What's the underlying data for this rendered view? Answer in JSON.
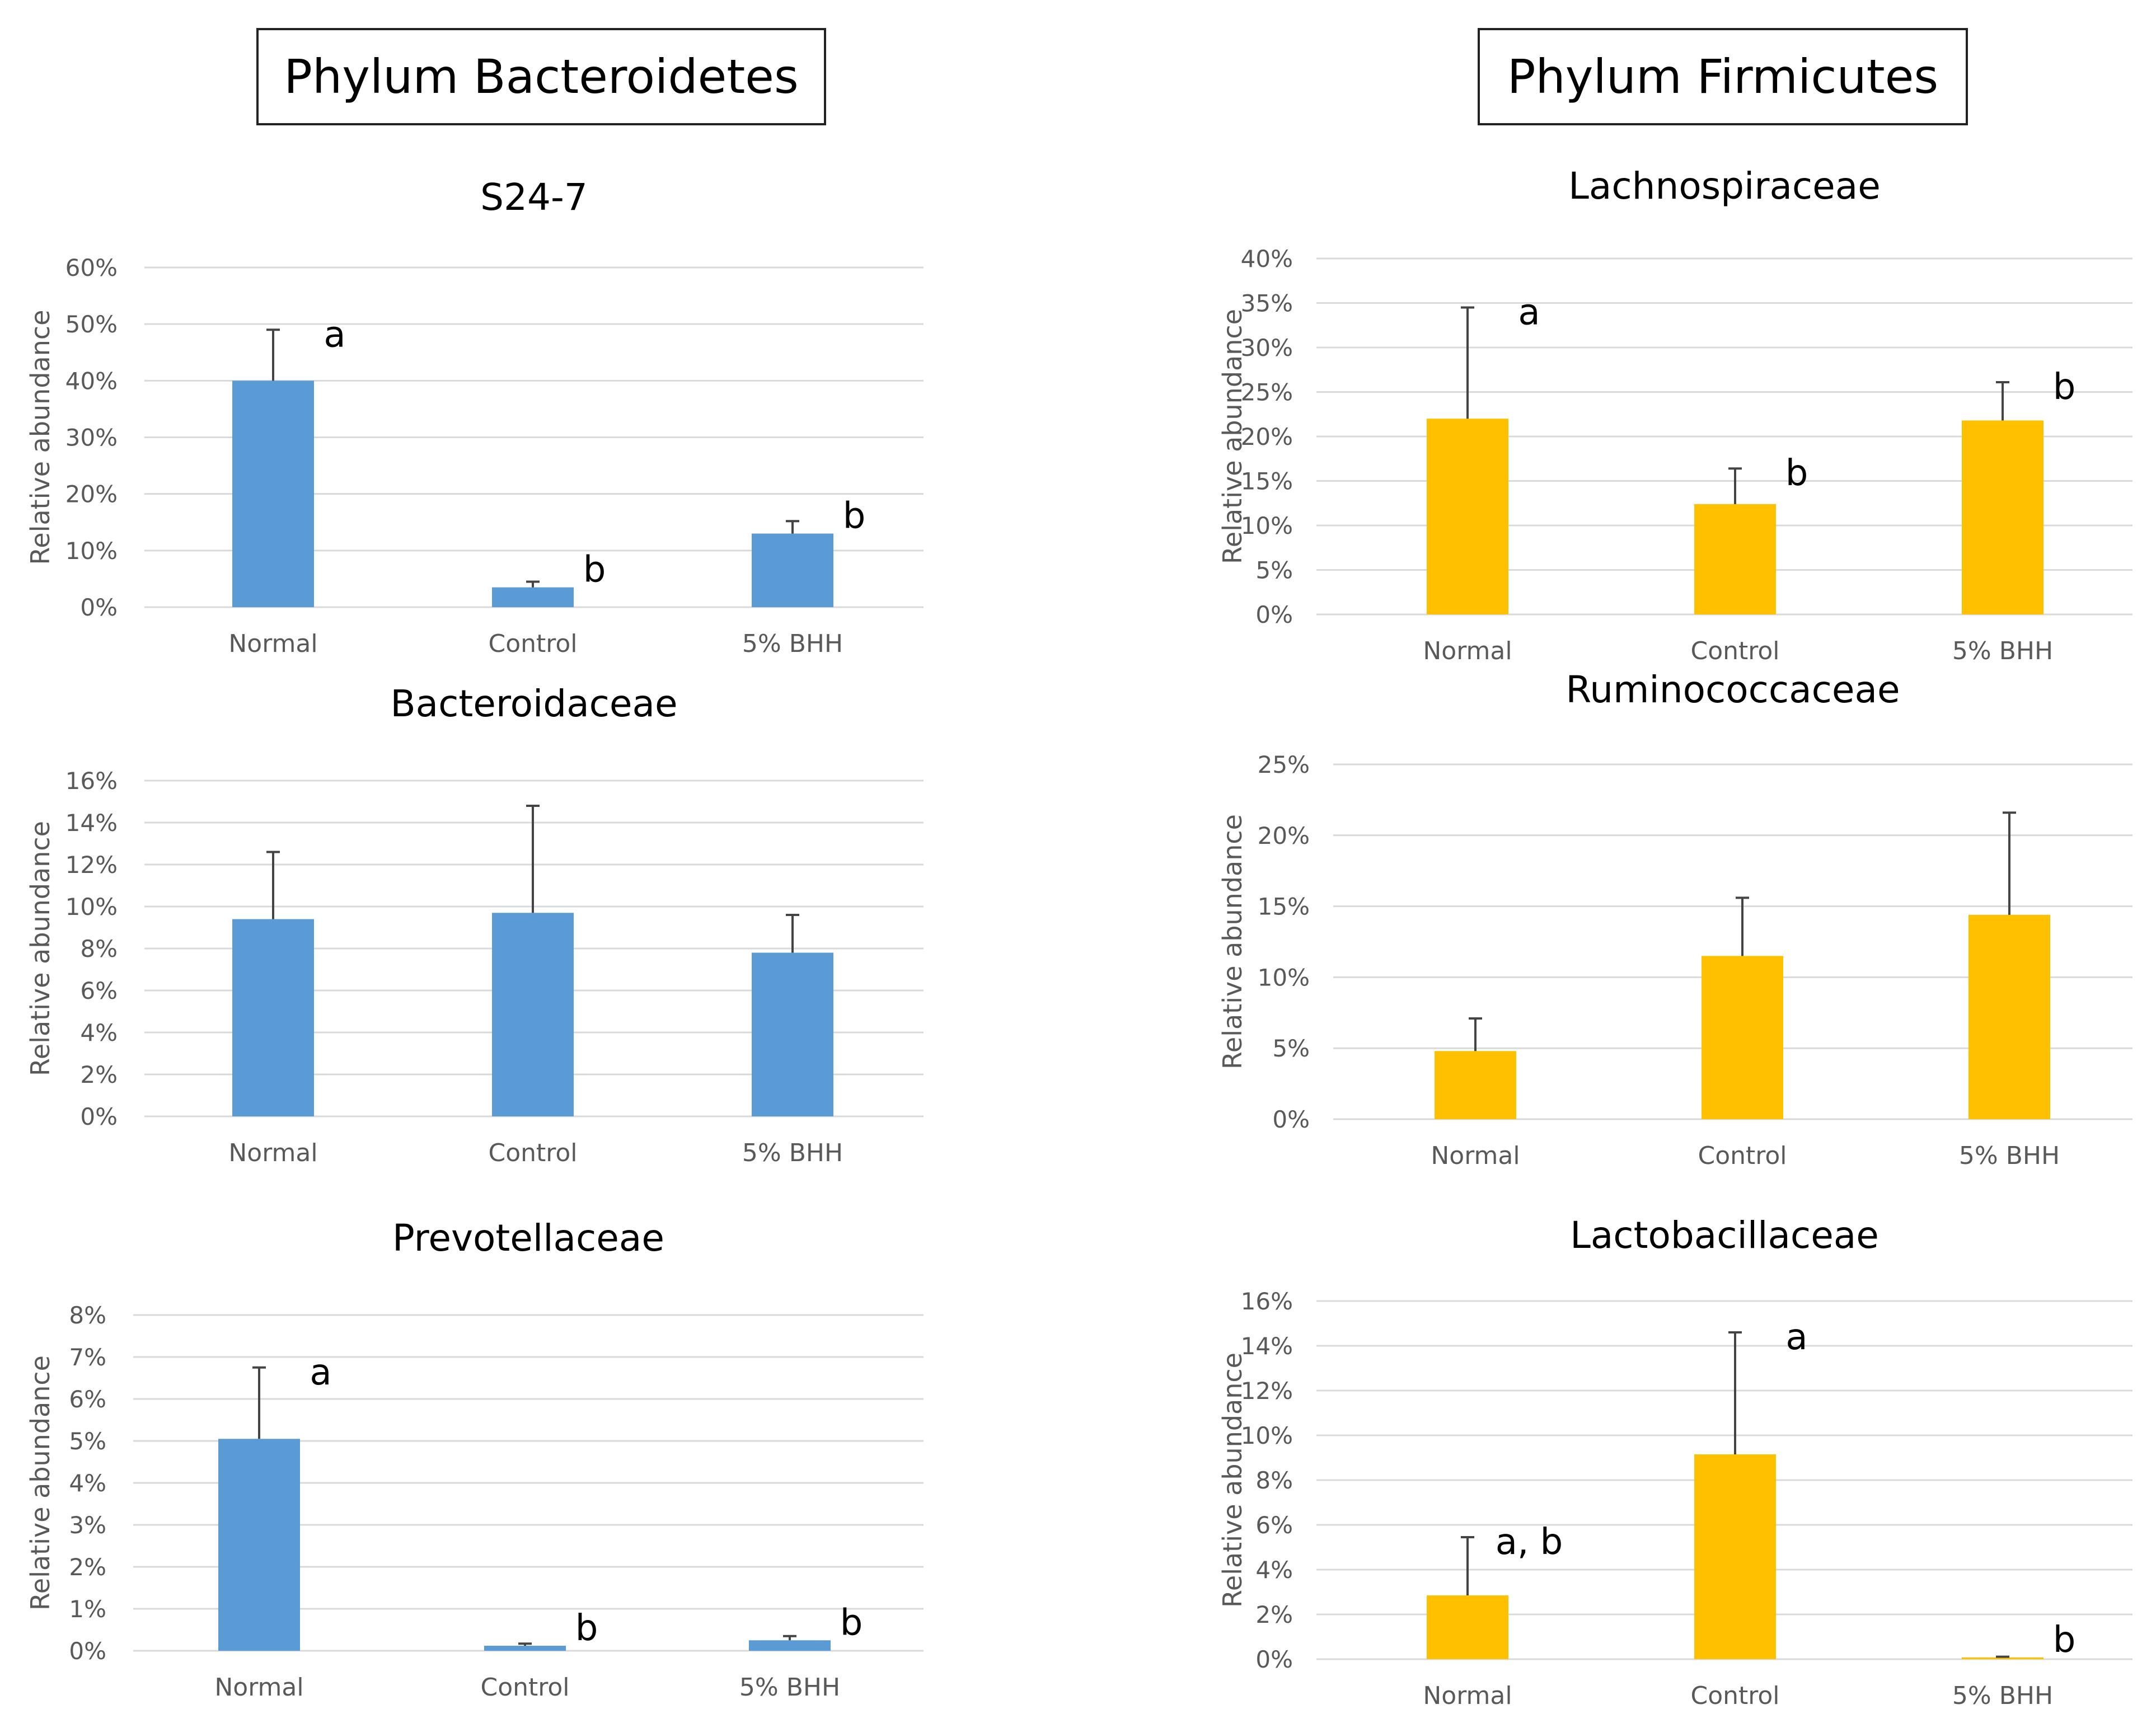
{
  "panels": {
    "left_title": "Phylum Bacteroidetes",
    "right_title": "Phylum Firmicutes"
  },
  "colors": {
    "bacteroidetes": "#5b9bd5",
    "firmicutes": "#ffc000",
    "grid": "#d9d9d9",
    "axis_text": "#595959"
  },
  "chart_data": [
    {
      "id": "s24-7",
      "type": "bar",
      "title": "S24-7",
      "ylabel": "Relative abundance",
      "xlabel": "",
      "categories": [
        "Normal",
        "Control",
        "5% BHH"
      ],
      "values": [
        40,
        3.5,
        13
      ],
      "errors": [
        9,
        1,
        2.2
      ],
      "letters": [
        "a",
        "b",
        "b"
      ],
      "ylim": [
        0,
        60
      ],
      "ticks": [
        "0%",
        "10%",
        "20%",
        "30%",
        "40%",
        "50%",
        "60%"
      ],
      "grid": true,
      "color": "#5b9bd5"
    },
    {
      "id": "bacteroidaceae",
      "type": "bar",
      "title": "Bacteroidaceae",
      "ylabel": "Relative abundance",
      "xlabel": "",
      "categories": [
        "Normal",
        "Control",
        "5% BHH"
      ],
      "values": [
        9.4,
        9.7,
        7.8
      ],
      "errors": [
        3.2,
        5.1,
        1.8
      ],
      "letters": [
        "",
        "",
        ""
      ],
      "ylim": [
        0,
        16
      ],
      "ticks": [
        "0%",
        "2%",
        "4%",
        "6%",
        "8%",
        "10%",
        "12%",
        "14%",
        "16%"
      ],
      "grid": true,
      "color": "#5b9bd5"
    },
    {
      "id": "prevotellaceae",
      "type": "bar",
      "title": "Prevotellaceae",
      "ylabel": "Relative abundance",
      "xlabel": "",
      "categories": [
        "Normal",
        "Control",
        "5% BHH"
      ],
      "values": [
        5.05,
        0.12,
        0.25
      ],
      "errors": [
        1.7,
        0.05,
        0.1
      ],
      "letters": [
        "a",
        "b",
        "b"
      ],
      "ylim": [
        0,
        8
      ],
      "ticks": [
        "0%",
        "1%",
        "2%",
        "3%",
        "4%",
        "5%",
        "6%",
        "7%",
        "8%"
      ],
      "grid": true,
      "color": "#5b9bd5"
    },
    {
      "id": "lachnospiraceae",
      "type": "bar",
      "title": "Lachnospiraceae",
      "ylabel": "Relative abundance",
      "xlabel": "",
      "categories": [
        "Normal",
        "Control",
        "5% BHH"
      ],
      "values": [
        22,
        12.4,
        21.8
      ],
      "errors": [
        12.5,
        4,
        4.3
      ],
      "letters": [
        "a",
        "b",
        "b"
      ],
      "ylim": [
        0,
        40
      ],
      "ticks": [
        "0%",
        "5%",
        "10%",
        "15%",
        "20%",
        "25%",
        "30%",
        "35%",
        "40%"
      ],
      "grid": true,
      "color": "#ffc000"
    },
    {
      "id": "ruminococcaceae",
      "type": "bar",
      "title": "Ruminococcaceae",
      "ylabel": "Relative abundance",
      "xlabel": "",
      "categories": [
        "Normal",
        "Control",
        "5% BHH"
      ],
      "values": [
        4.8,
        11.5,
        14.4
      ],
      "errors": [
        2.3,
        4.1,
        7.2
      ],
      "letters": [
        "",
        "",
        ""
      ],
      "ylim": [
        0,
        25
      ],
      "ticks": [
        "0%",
        "5%",
        "10%",
        "15%",
        "20%",
        "25%"
      ],
      "grid": true,
      "color": "#ffc000"
    },
    {
      "id": "lactobacillaceae",
      "type": "bar",
      "title": "Lactobacillaceae",
      "ylabel": "Relative abundance",
      "xlabel": "",
      "categories": [
        "Normal",
        "Control",
        "5% BHH"
      ],
      "values": [
        2.85,
        9.15,
        0.08
      ],
      "errors": [
        2.6,
        5.45,
        0.03
      ],
      "letters": [
        "a, b",
        "a",
        "b"
      ],
      "ylim": [
        0,
        16
      ],
      "ticks": [
        "0%",
        "2%",
        "4%",
        "6%",
        "8%",
        "10%",
        "12%",
        "14%",
        "16%"
      ],
      "grid": true,
      "color": "#ffc000"
    }
  ]
}
